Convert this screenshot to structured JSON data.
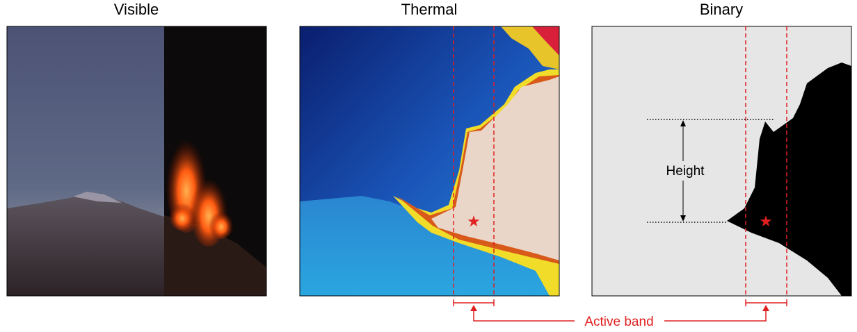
{
  "panels": [
    {
      "title": "Visible"
    },
    {
      "title": "Thermal"
    },
    {
      "title": "Binary"
    }
  ],
  "annotations": {
    "height": "Height",
    "active_band": "Active band"
  }
}
